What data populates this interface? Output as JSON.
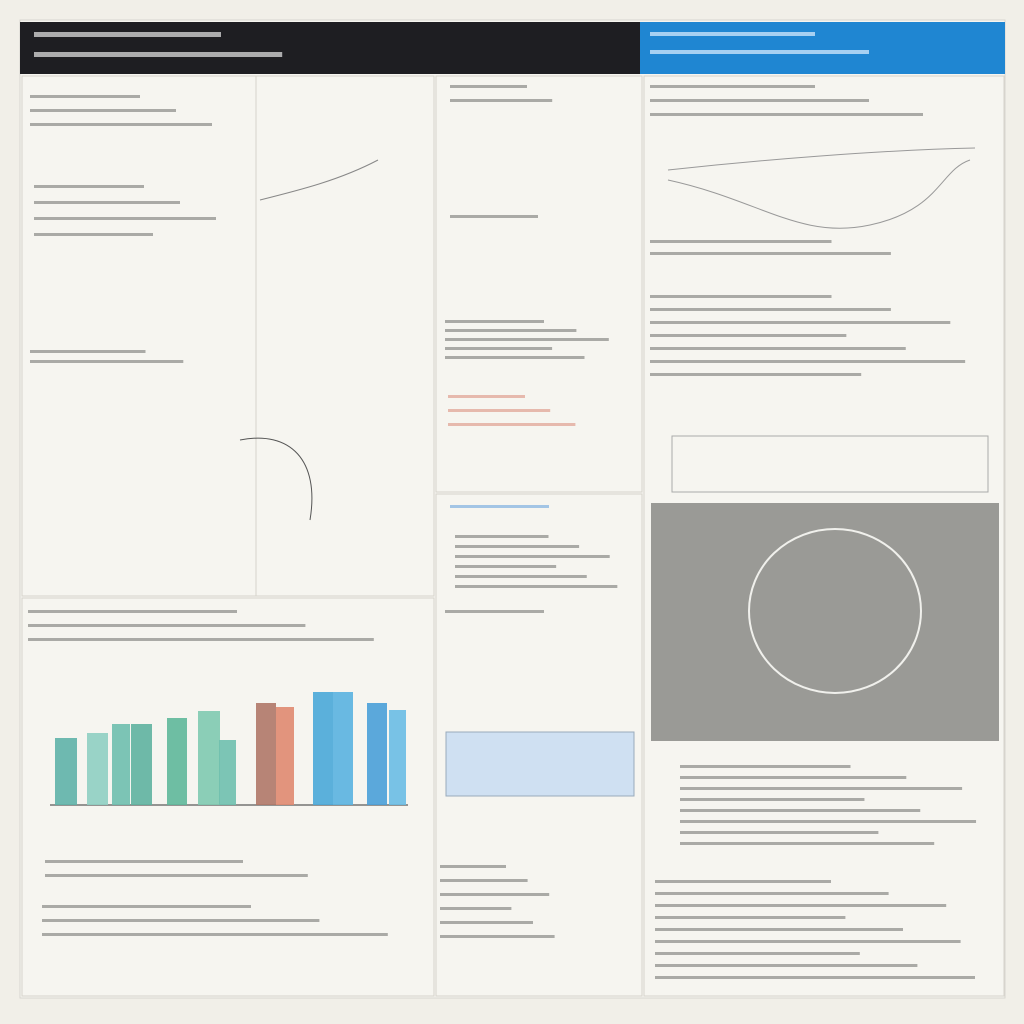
{
  "chart_data": {
    "type": "bar",
    "categories": [
      null,
      null,
      null,
      null,
      null,
      null,
      null,
      null,
      null,
      null,
      null,
      null,
      null
    ],
    "values": [
      67,
      72,
      81,
      81,
      87,
      94,
      65,
      102,
      98,
      113,
      113,
      102,
      95
    ],
    "colors": [
      "#5fb3a8",
      "#8fcfc2",
      "#6fbfae",
      "#5fb3a0",
      "#5fb89a",
      "#7fcab0",
      "#6fc0ae",
      "#b07868",
      "#e08a70",
      "#4aa8d8",
      "#5ab2e0",
      "#4aa0d8",
      "#6abce4"
    ]
  }
}
